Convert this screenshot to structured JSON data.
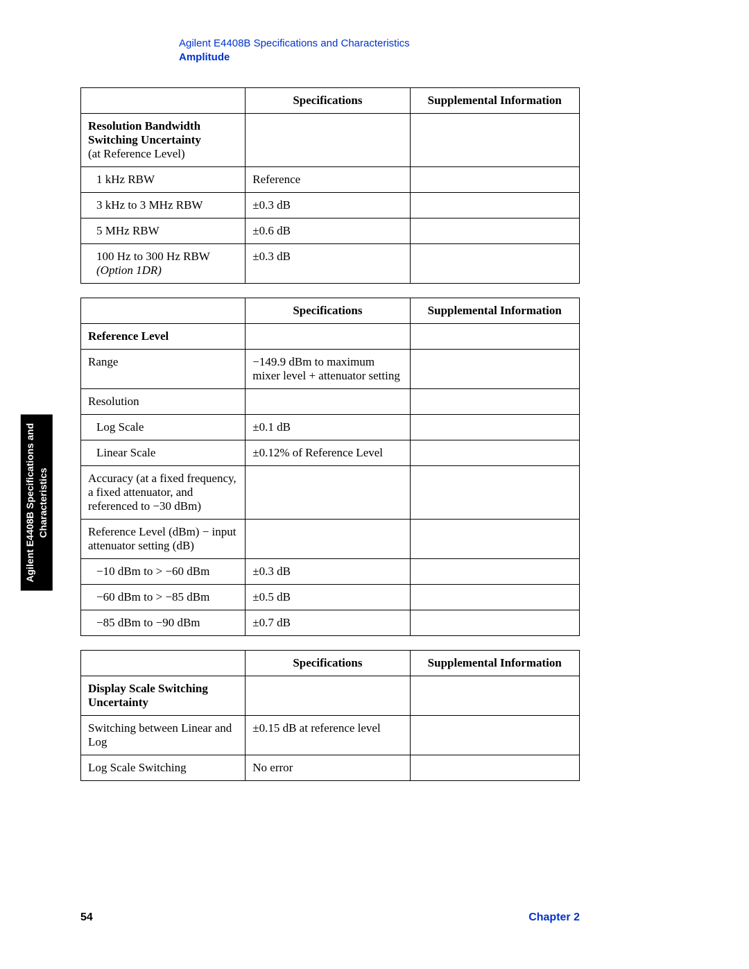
{
  "header": {
    "title": "Agilent E4408B Specifications and Characteristics",
    "section": "Amplitude"
  },
  "sideTab": {
    "line1": "Agilent E4408B Specifications and",
    "line2": "Characteristics"
  },
  "columns": {
    "specs": "Specifications",
    "supp": "Supplemental Information"
  },
  "table1": {
    "heading_bold": "Resolution Bandwidth Switching Uncertainty",
    "heading_plain": "(at Reference Level)",
    "rows": [
      {
        "label": "1 kHz RBW",
        "spec": "Reference"
      },
      {
        "label": "3 kHz to 3 MHz RBW",
        "spec": "±0.3 dB"
      },
      {
        "label": "5 MHz RBW",
        "spec": "±0.6 dB"
      },
      {
        "label": "100 Hz to 300 Hz RBW",
        "label_italic": "(Option 1DR)",
        "spec": "±0.3 dB"
      }
    ]
  },
  "table2": {
    "heading_bold": "Reference Level",
    "rows": [
      {
        "label": "Range",
        "spec": "−149.9 dBm to maximum mixer level + attenuator setting",
        "indent": 0
      },
      {
        "label": "Resolution",
        "spec": "",
        "indent": 0
      },
      {
        "label": "Log Scale",
        "spec": "±0.1 dB",
        "indent": 1
      },
      {
        "label": "Linear Scale",
        "spec": "±0.12% of Reference Level",
        "indent": 1
      },
      {
        "label": "Accuracy (at a fixed frequency, a fixed attenuator, and referenced to −30 dBm)",
        "spec": "",
        "indent": 0
      },
      {
        "label": "Reference Level (dBm) − input attenuator setting (dB)",
        "spec": "",
        "indent": 0
      },
      {
        "label": "−10 dBm to > −60 dBm",
        "spec": "±0.3 dB",
        "indent": 1
      },
      {
        "label": "−60 dBm to > −85 dBm",
        "spec": "±0.5 dB",
        "indent": 1
      },
      {
        "label": "−85 dBm to −90 dBm",
        "spec": "±0.7 dB",
        "indent": 1
      }
    ]
  },
  "table3": {
    "heading_bold": "Display Scale Switching Uncertainty",
    "rows": [
      {
        "label": "Switching between Linear and Log",
        "spec": "±0.15 dB at reference level"
      },
      {
        "label": "Log Scale Switching",
        "spec": "No error"
      }
    ]
  },
  "footer": {
    "page": "54",
    "chapter": "Chapter 2"
  }
}
